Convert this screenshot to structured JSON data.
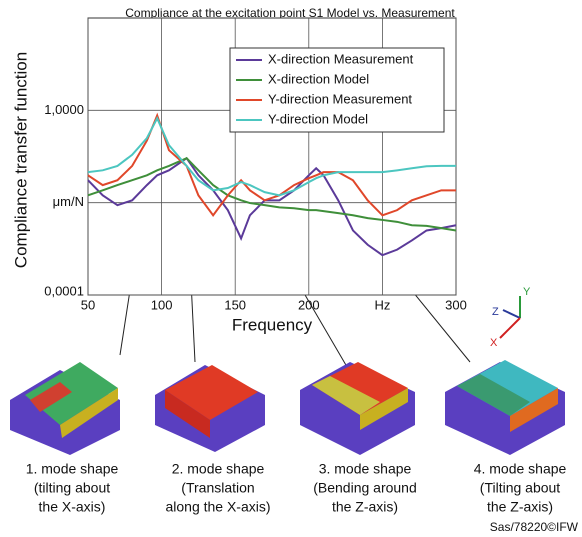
{
  "chart_data": {
    "type": "line",
    "title": "Compliance at the excitation point S1 Model vs. Measurement",
    "xlabel": "Frequency",
    "ylabel": "Compliance transfer function",
    "x": [
      50,
      60,
      70,
      80,
      90,
      97,
      105,
      117,
      125,
      135,
      145,
      154,
      160,
      170,
      180,
      190,
      200,
      205,
      210,
      220,
      230,
      240,
      250,
      260,
      270,
      280,
      290,
      300
    ],
    "series": [
      {
        "name": "X-direction Measurement",
        "color": "#5b3a99",
        "values": [
          0.00175,
          0.0012,
          0.00094,
          0.00106,
          0.00155,
          0.00198,
          0.00224,
          0.00303,
          0.00198,
          0.00136,
          0.00083,
          0.00041,
          0.00073,
          0.00106,
          0.00106,
          0.00136,
          0.00198,
          0.00236,
          0.00198,
          0.00106,
          0.0005,
          0.00035,
          0.00027,
          0.00031,
          0.00039,
          0.0005,
          0.00053,
          0.00057
        ]
      },
      {
        "name": "X-direction Model",
        "color": "#3f8f3a",
        "values": [
          0.0012,
          0.00136,
          0.00155,
          0.00175,
          0.00198,
          0.00224,
          0.0025,
          0.00303,
          0.00224,
          0.00155,
          0.0012,
          0.00106,
          0.00099,
          0.00094,
          0.00089,
          0.00087,
          0.00083,
          0.00083,
          0.00081,
          0.00077,
          0.00073,
          0.00068,
          0.00065,
          0.00062,
          0.00057,
          0.00056,
          0.00053,
          0.0005
        ]
      },
      {
        "name": "Y-direction Measurement",
        "color": "#e0472a",
        "values": [
          0.00198,
          0.00155,
          0.00175,
          0.0025,
          0.0047,
          0.0088,
          0.0037,
          0.0025,
          0.0012,
          0.00073,
          0.0012,
          0.00175,
          0.00136,
          0.00106,
          0.0012,
          0.00155,
          0.00184,
          0.00198,
          0.00214,
          0.00214,
          0.00175,
          0.00106,
          0.00073,
          0.00083,
          0.00106,
          0.0012,
          0.00136,
          0.00136
        ]
      },
      {
        "name": "Y-direction Model",
        "color": "#4cc6c0",
        "values": [
          0.00214,
          0.00224,
          0.0025,
          0.0033,
          0.005,
          0.0082,
          0.0042,
          0.0025,
          0.00175,
          0.00136,
          0.00144,
          0.00167,
          0.00155,
          0.0013,
          0.0012,
          0.00136,
          0.00167,
          0.00184,
          0.00198,
          0.00214,
          0.00214,
          0.00214,
          0.00214,
          0.00224,
          0.00236,
          0.00248,
          0.0025,
          0.0025
        ]
      }
    ],
    "xlim": [
      50,
      300
    ],
    "xticks": [
      50,
      100,
      150,
      200,
      {
        "value": 250,
        "label": "Hz"
      },
      300
    ],
    "ylim": [
      0.0001,
      0.1
    ],
    "yticks": [
      {
        "value": 0.0001,
        "label": "0,0001"
      },
      {
        "value": 0.001,
        "label": "μm/N"
      },
      {
        "value": 0.01,
        "label": "1,0000"
      }
    ],
    "ylog": true,
    "grid": true,
    "legend": "upper right"
  },
  "figure": {
    "axes": [
      "Z",
      "Y",
      "X"
    ],
    "captions": [
      [
        "1. mode shape",
        "(tilting about",
        "the X-axis)"
      ],
      [
        "2. mode shape",
        "(Translation",
        "along the X-axis)"
      ],
      [
        "3. mode shape",
        "(Bending around",
        "the Z-axis)"
      ],
      [
        "4. mode shape",
        "(Tilting about",
        "the Z-axis)"
      ]
    ],
    "credit": "Sas/78220©IFW"
  }
}
